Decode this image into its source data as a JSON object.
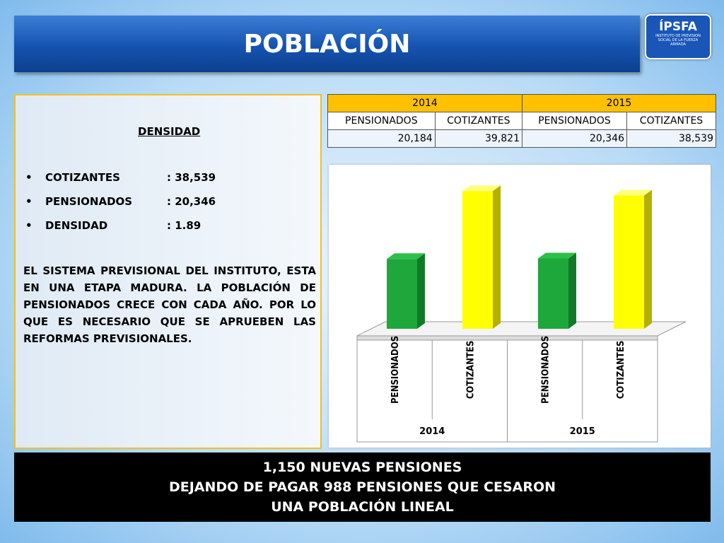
{
  "header": {
    "title": "POBLACIÓN",
    "logo": "ÍPSFA",
    "logo_caption": "INSTITUTO DE PREVISION SOCIAL DE LA FUERZA ARMADA"
  },
  "left_panel": {
    "heading": "DENSIDAD",
    "items": [
      {
        "label": "COTIZANTES",
        "value": ": 38,539"
      },
      {
        "label": "PENSIONADOS",
        "value": ": 20,346"
      },
      {
        "label": "DENSIDAD",
        "value": ": 1.89"
      }
    ],
    "paragraph": "EL SISTEMA PREVISIONAL DEL INSTITUTO, ESTA EN UNA ETAPA MADURA. LA POBLACIÓN DE PENSIONADOS CRECE CON CADA AÑO. POR LO QUE ES NECESARIO QUE SE APRUEBEN LAS REFORMAS PREVISIONALES."
  },
  "table": {
    "groups": [
      "2014",
      "2015"
    ],
    "columns": [
      "PENSIONADOS",
      "COTIZANTES",
      "PENSIONADOS",
      "COTIZANTES"
    ],
    "rows": [
      [
        "20,184",
        "39,821",
        "20,346",
        "38,539"
      ]
    ]
  },
  "chart_data": {
    "type": "bar3d",
    "categories": [
      "PENSIONADOS",
      "COTIZANTES",
      "PENSIONADOS",
      "COTIZANTES"
    ],
    "groups": [
      "2014",
      "2015"
    ],
    "values": [
      20184,
      39821,
      20346,
      38539
    ],
    "colors": [
      "#1ea83c",
      "#ffff00",
      "#1ea83c",
      "#ffff00"
    ],
    "ylim": [
      0,
      46000
    ]
  },
  "footer": {
    "lines": [
      "1,150 NUEVAS PENSIONES",
      "DEJANDO DE PAGAR 988 PENSIONES QUE CESARON",
      "UNA POBLACIÓN LINEAL"
    ]
  }
}
